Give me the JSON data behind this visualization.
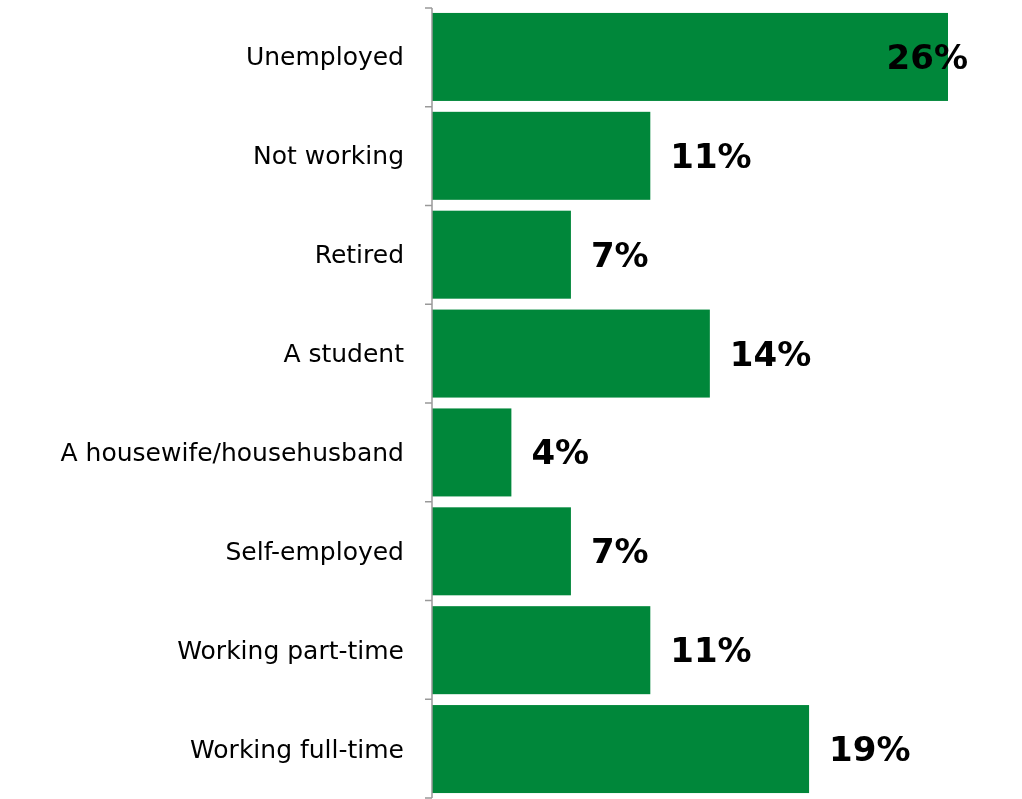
{
  "chart_data": {
    "type": "bar",
    "orientation": "horizontal",
    "categories": [
      "Unemployed",
      "Not working",
      "Retired",
      "A student",
      "A housewife/househusband",
      "Self-employed",
      "Working part-time",
      "Working full-time"
    ],
    "values": [
      26,
      11,
      7,
      14,
      4,
      7,
      11,
      19
    ],
    "value_labels": [
      "26%",
      "11%",
      "7%",
      "14%",
      "4%",
      "7%",
      "11%",
      "19%"
    ],
    "color": "#00873a"
  }
}
